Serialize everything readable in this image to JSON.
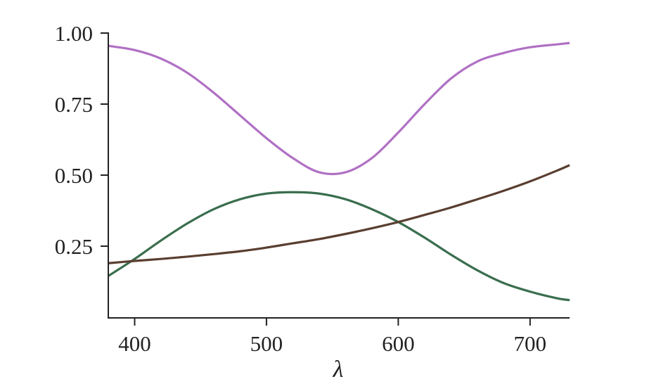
{
  "chart_data": {
    "type": "line",
    "title": "",
    "xlabel": "λ",
    "ylabel": "",
    "xlim": [
      380,
      730
    ],
    "ylim": [
      0,
      1.0
    ],
    "grid": false,
    "legend": null,
    "x_ticks": [
      400,
      500,
      600,
      700
    ],
    "x_tick_labels": [
      "400",
      "500",
      "600",
      "700"
    ],
    "y_ticks": [
      0.25,
      0.5,
      0.75,
      1.0
    ],
    "y_tick_labels": [
      "0.25",
      "0.50",
      "0.75",
      "1.00"
    ],
    "x": [
      380,
      400,
      420,
      440,
      460,
      480,
      500,
      520,
      540,
      560,
      580,
      600,
      620,
      640,
      660,
      680,
      700,
      720,
      730
    ],
    "series": [
      {
        "name": "purple",
        "color": "#b070c4",
        "values": [
          0.955,
          0.94,
          0.91,
          0.86,
          0.79,
          0.71,
          0.63,
          0.56,
          0.51,
          0.51,
          0.56,
          0.65,
          0.75,
          0.84,
          0.9,
          0.93,
          0.95,
          0.96,
          0.965
        ]
      },
      {
        "name": "green",
        "color": "#3a6e4e",
        "values": [
          0.145,
          0.205,
          0.27,
          0.33,
          0.38,
          0.415,
          0.435,
          0.44,
          0.435,
          0.415,
          0.38,
          0.335,
          0.28,
          0.22,
          0.165,
          0.12,
          0.09,
          0.067,
          0.06
        ]
      },
      {
        "name": "brown",
        "color": "#5a3e30",
        "values": [
          0.19,
          0.198,
          0.205,
          0.213,
          0.222,
          0.232,
          0.245,
          0.26,
          0.275,
          0.293,
          0.313,
          0.335,
          0.36,
          0.386,
          0.415,
          0.445,
          0.478,
          0.515,
          0.535
        ]
      }
    ]
  }
}
